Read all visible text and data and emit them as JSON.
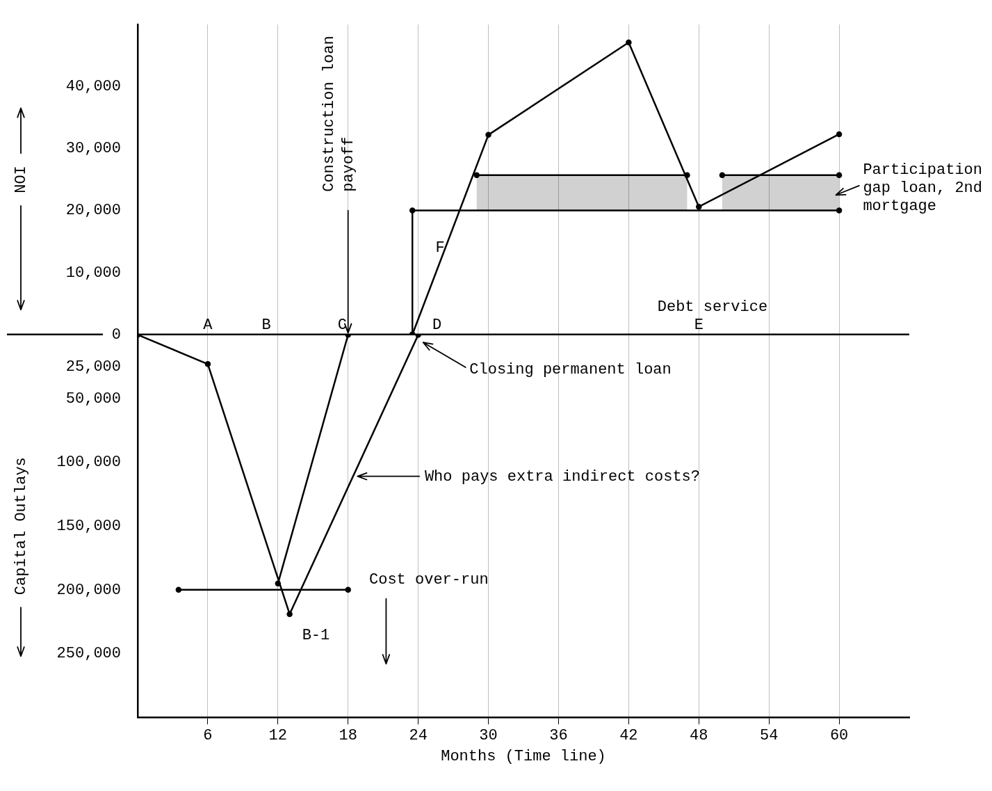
{
  "chart_data": [
    {
      "type": "line",
      "ylabel": "NOI",
      "tick_labels": "y",
      "xlim": [
        0,
        66
      ],
      "xticks": [
        6,
        12,
        18,
        24,
        30,
        36,
        42,
        48,
        54,
        60
      ],
      "ylim": [
        0,
        50000
      ],
      "yticks": [
        {
          "value": 0,
          "label": "0"
        },
        {
          "value": 10000,
          "label": "10,000"
        },
        {
          "value": 20000,
          "label": "20,000"
        },
        {
          "value": 30000,
          "label": "30,000"
        },
        {
          "value": 40000,
          "label": "40,000"
        }
      ],
      "grid": "x",
      "legend": false,
      "marker": "circle",
      "line_style": "solid",
      "ref_lines": [
        {
          "axis": "y",
          "value": 0,
          "color": "#000000"
        }
      ],
      "series": [
        {
          "color": "#000000",
          "x": [
            23.5,
            30,
            42,
            48,
            60
          ],
          "values": [
            0,
            32200,
            47100,
            20600,
            32300
          ]
        },
        {
          "color": "#000000",
          "x": [
            23.5,
            23.5,
            60
          ],
          "values": [
            0,
            20000,
            20000
          ]
        },
        {
          "color": "#000000",
          "x": [
            29,
            47,
            48,
            50,
            60
          ],
          "values": [
            25700,
            25700,
            null,
            25700,
            25700
          ],
          "lower": [
            20000,
            20000,
            null,
            20000,
            20000
          ],
          "upper": [
            25700,
            25700,
            null,
            25700,
            25700
          ]
        }
      ],
      "annotations": [
        {
          "text": "A",
          "x": 6,
          "y": 0
        },
        {
          "text": "B",
          "x": 11,
          "y": 0
        },
        {
          "text": "C",
          "x": 17.5,
          "y": 0
        },
        {
          "text": "D",
          "x": 24.5,
          "y": 0
        },
        {
          "text": "E",
          "x": 48,
          "y": 0
        },
        "F",
        {
          "text": "Construction loan payoff",
          "x": 18,
          "y": 0
        },
        "Debt service",
        "Participation gap loan, 2nd mortgage"
      ]
    },
    {
      "type": "line",
      "ylabel": "Capital Outlays",
      "xlabel": "Months (Time line)",
      "xlim": [
        0,
        66
      ],
      "xticks": [
        6,
        12,
        18,
        24,
        30,
        36,
        42,
        48,
        54,
        60
      ],
      "ylim": [
        300000,
        0
      ],
      "yticks": [
        {
          "value": 25000,
          "label": "25,000"
        },
        {
          "value": 50000,
          "label": "50,000"
        },
        {
          "value": 100000,
          "label": "100,000"
        },
        {
          "value": 150000,
          "label": "150,000"
        },
        {
          "value": 200000,
          "label": "200,000"
        },
        {
          "value": 250000,
          "label": "250,000"
        }
      ],
      "grid": "x",
      "legend": false,
      "marker": "circle",
      "line_style": "solid",
      "series": [
        {
          "color": "#000000",
          "x": [
            0,
            6,
            13,
            24
          ],
          "values": [
            0,
            23000,
            219000,
            0
          ]
        },
        {
          "color": "#000000",
          "x": [
            12,
            18
          ],
          "values": [
            195000,
            0
          ]
        },
        {
          "color": "#000000",
          "x": [
            3.5,
            18
          ],
          "values": [
            200000,
            200000
          ]
        }
      ],
      "annotations": [
        {
          "text": "B-1",
          "x": 13,
          "y": 219000
        },
        "Closing permanent loan",
        "Who pays extra indirect costs?",
        "Cost over-run"
      ]
    }
  ]
}
